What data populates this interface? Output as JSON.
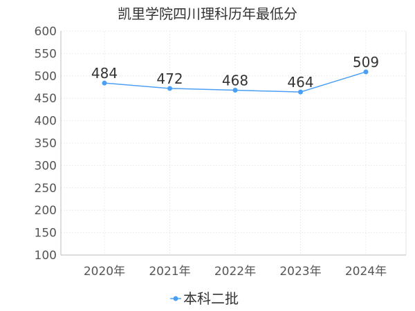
{
  "chart_data": {
    "type": "line",
    "title": "凯里学院四川理科历年最低分",
    "categories": [
      "2020年",
      "2021年",
      "2022年",
      "2023年",
      "2024年"
    ],
    "series": [
      {
        "name": "本科二批",
        "values": [
          484,
          472,
          468,
          464,
          509
        ],
        "color": "#4a9ff5"
      }
    ],
    "ylim": [
      100,
      600
    ],
    "yticks": [
      100,
      150,
      200,
      250,
      300,
      350,
      400,
      450,
      500,
      550,
      600
    ],
    "grid": true,
    "legend_position": "bottom",
    "show_data_labels": true
  }
}
